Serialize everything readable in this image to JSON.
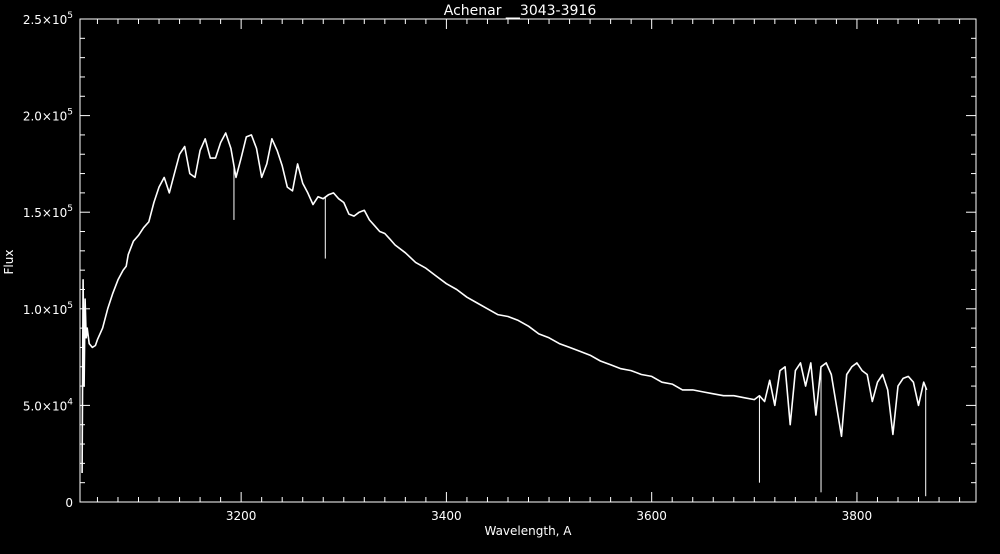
{
  "colors": {
    "background": "#000000",
    "foreground": "#ffffff"
  },
  "chart_data": {
    "type": "line",
    "title": "Achenar __3043-3916",
    "xlabel": "Wavelength, A",
    "ylabel": "Flux",
    "xlim": [
      3043,
      3916
    ],
    "ylim": [
      0,
      250000
    ],
    "xticks": [
      {
        "value": 3200,
        "label": "3200"
      },
      {
        "value": 3400,
        "label": "3400"
      },
      {
        "value": 3600,
        "label": "3600"
      },
      {
        "value": 3800,
        "label": "3800"
      }
    ],
    "yticks": [
      {
        "value": 0,
        "mantissa": "0",
        "exponent": ""
      },
      {
        "value": 50000,
        "mantissa": "5.0×10",
        "exponent": "4"
      },
      {
        "value": 100000,
        "mantissa": "1.0×10",
        "exponent": "5"
      },
      {
        "value": 150000,
        "mantissa": "1.5×10",
        "exponent": "5"
      },
      {
        "value": 200000,
        "mantissa": "2.0×10",
        "exponent": "5"
      },
      {
        "value": 250000,
        "mantissa": "2.5×10",
        "exponent": "5"
      }
    ],
    "grid": false,
    "series": [
      {
        "x": [
          3045,
          3046,
          3047,
          3048,
          3049,
          3050,
          3052,
          3055,
          3058,
          3060,
          3065,
          3070,
          3075,
          3080,
          3085,
          3088,
          3090,
          3095,
          3100,
          3105,
          3110,
          3115,
          3120,
          3125,
          3130,
          3135,
          3140,
          3145,
          3150,
          3155,
          3160,
          3165,
          3170,
          3175,
          3180,
          3185,
          3190,
          3195,
          3200,
          3205,
          3210,
          3215,
          3220,
          3225,
          3230,
          3235,
          3240,
          3245,
          3250,
          3255,
          3260,
          3265,
          3270,
          3275,
          3280,
          3285,
          3290,
          3295,
          3300,
          3305,
          3310,
          3315,
          3320,
          3325,
          3330,
          3335,
          3340,
          3345,
          3350,
          3360,
          3370,
          3380,
          3390,
          3400,
          3410,
          3420,
          3430,
          3440,
          3450,
          3460,
          3470,
          3480,
          3490,
          3500,
          3510,
          3520,
          3530,
          3540,
          3550,
          3560,
          3570,
          3580,
          3590,
          3600,
          3610,
          3620,
          3630,
          3640,
          3650,
          3660,
          3670,
          3680,
          3690,
          3700,
          3705,
          3710,
          3715,
          3720,
          3725,
          3730,
          3735,
          3740,
          3745,
          3750,
          3755,
          3760,
          3765,
          3770,
          3775,
          3780,
          3785,
          3790,
          3795,
          3800,
          3805,
          3810,
          3815,
          3820,
          3825,
          3830,
          3835,
          3840,
          3845,
          3850,
          3855,
          3860,
          3865,
          3868
        ],
        "y": [
          15000,
          115000,
          60000,
          105000,
          85000,
          90000,
          82000,
          80000,
          81000,
          84000,
          90000,
          100000,
          108000,
          115000,
          120000,
          122000,
          128000,
          135000,
          138000,
          142000,
          145000,
          155000,
          163000,
          168000,
          160000,
          170000,
          180000,
          184000,
          170000,
          168000,
          182000,
          188000,
          178000,
          178000,
          186000,
          191000,
          183000,
          168000,
          178000,
          189000,
          190000,
          183000,
          168000,
          175000,
          188000,
          182000,
          174000,
          163000,
          161000,
          175000,
          165000,
          160000,
          154000,
          158000,
          157000,
          159000,
          160000,
          157000,
          155000,
          149000,
          148000,
          150000,
          151000,
          146000,
          143000,
          140000,
          139000,
          136000,
          133000,
          129000,
          124000,
          121000,
          117000,
          113000,
          110000,
          106000,
          103000,
          100000,
          97000,
          96000,
          94000,
          91000,
          87000,
          85000,
          82000,
          80000,
          78000,
          76000,
          73000,
          71000,
          69000,
          68000,
          66000,
          65000,
          62000,
          61000,
          58000,
          58000,
          57000,
          56000,
          55000,
          55000,
          54000,
          53000,
          55000,
          52000,
          63000,
          50000,
          68000,
          70000,
          40000,
          68000,
          72000,
          60000,
          72000,
          45000,
          70000,
          72000,
          66000,
          50000,
          34000,
          66000,
          70000,
          72000,
          68000,
          66000,
          52000,
          62000,
          66000,
          58000,
          35000,
          60000,
          64000,
          65000,
          62000,
          50000,
          62000,
          58000
        ]
      }
    ],
    "spikes": [
      {
        "x": 3193,
        "y": 146000
      },
      {
        "x": 3282,
        "y": 126000
      },
      {
        "x": 3705,
        "y": 10000
      },
      {
        "x": 3765,
        "y": 5000
      },
      {
        "x": 3867,
        "y": 3000
      }
    ]
  }
}
